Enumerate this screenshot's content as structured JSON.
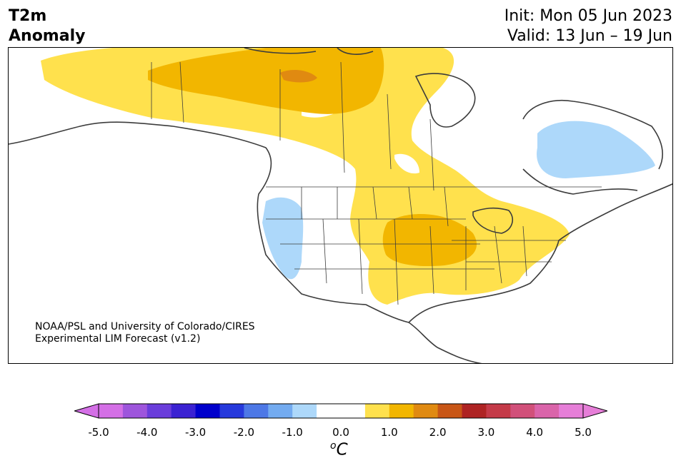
{
  "header": {
    "title_line1": "T2m",
    "title_line2": "Anomaly",
    "init": "Init: Mon 05 Jun 2023",
    "valid": "Valid: 13 Jun – 19 Jun"
  },
  "credit": {
    "line1": "NOAA/PSL and University of Colorado/CIRES",
    "line2": "Experimental LIM Forecast (v1.2)"
  },
  "colorbar": {
    "label_base": "C",
    "label_sup": "o",
    "ticks": [
      "-5.0",
      "-4.0",
      "-3.0",
      "-2.0",
      "-1.0",
      "0.0",
      "1.0",
      "2.0",
      "3.0",
      "4.0",
      "5.0"
    ],
    "colors": [
      "#d46fe6",
      "#9e55dc",
      "#6a3ddb",
      "#3b22d2",
      "#0000cc",
      "#2639dc",
      "#4d78e6",
      "#73abf0",
      "#add8fa",
      "#ffffff",
      "#ffffff",
      "#ffe14d",
      "#f2b600",
      "#e08a11",
      "#c85616",
      "#ae2323",
      "#c43a48",
      "#d1507a",
      "#da64aa",
      "#e67ed8"
    ],
    "under_color": "#d46fe6",
    "over_color": "#e67ed8"
  },
  "map": {
    "fill_colors": {
      "warm1": "#ffe14d",
      "warm2": "#f2b600",
      "warm3": "#e08a11",
      "cool1": "#add8fa",
      "land_outline": "#3c3c3c"
    }
  }
}
